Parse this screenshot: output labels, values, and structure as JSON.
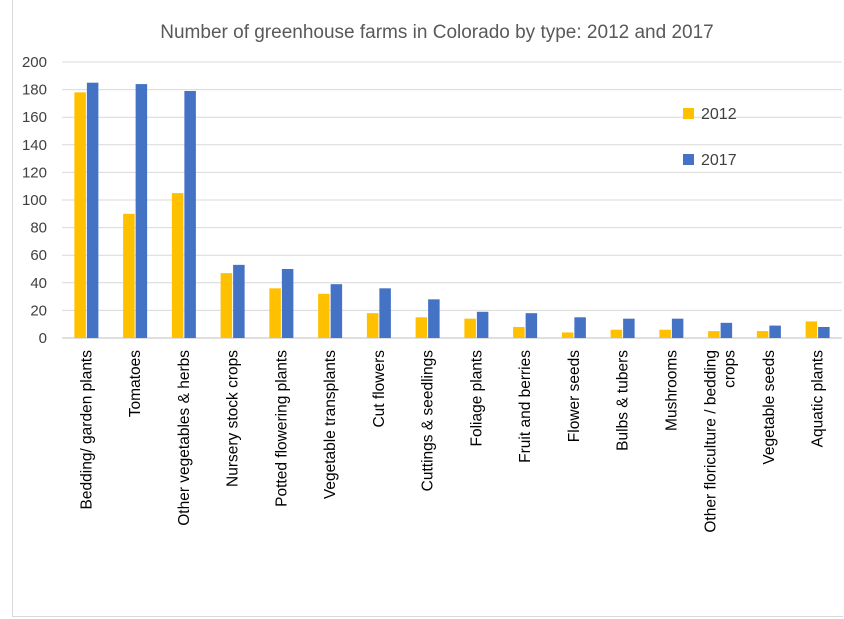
{
  "chart_data": {
    "type": "bar",
    "title": "Number of greenhouse farms in Colorado by type: 2012 and 2017",
    "xlabel": "",
    "ylabel": "",
    "ylim": [
      0,
      200
    ],
    "yticks": [
      0,
      20,
      40,
      60,
      80,
      100,
      120,
      140,
      160,
      180,
      200
    ],
    "grid": true,
    "legend_position": "upper-right",
    "categories": [
      "Bedding/ garden plants",
      "Tomatoes",
      "Other vegetables & herbs",
      "Nursery stock crops",
      "Potted flowering plants",
      "Vegetable transplants",
      "Cut flowers",
      "Cuttings & seedlings",
      "Foliage plants",
      "Fruit and berries",
      "Flower seeds",
      "Bulbs & tubers",
      "Mushrooms",
      "Other floriculture / bedding crops",
      "Vegetable seeds",
      "Aquatic plants"
    ],
    "category_lines": [
      [
        "Bedding/ garden plants"
      ],
      [
        "Tomatoes"
      ],
      [
        "Other vegetables & herbs"
      ],
      [
        "Nursery stock crops"
      ],
      [
        "Potted flowering plants"
      ],
      [
        "Vegetable transplants"
      ],
      [
        "Cut flowers"
      ],
      [
        "Cuttings & seedlings"
      ],
      [
        "Foliage plants"
      ],
      [
        "Fruit and berries"
      ],
      [
        "Flower seeds"
      ],
      [
        "Bulbs & tubers"
      ],
      [
        "Mushrooms"
      ],
      [
        "Other floriculture / bedding",
        "crops"
      ],
      [
        "Vegetable seeds"
      ],
      [
        "Aquatic plants"
      ]
    ],
    "series": [
      {
        "name": "2012",
        "color": "#FFC000",
        "values": [
          178,
          90,
          105,
          47,
          36,
          32,
          18,
          15,
          14,
          8,
          4,
          6,
          6,
          5,
          5,
          12
        ]
      },
      {
        "name": "2017",
        "color": "#4472C4",
        "values": [
          185,
          184,
          179,
          53,
          50,
          39,
          36,
          28,
          19,
          18,
          15,
          14,
          14,
          11,
          9,
          8
        ]
      }
    ]
  }
}
